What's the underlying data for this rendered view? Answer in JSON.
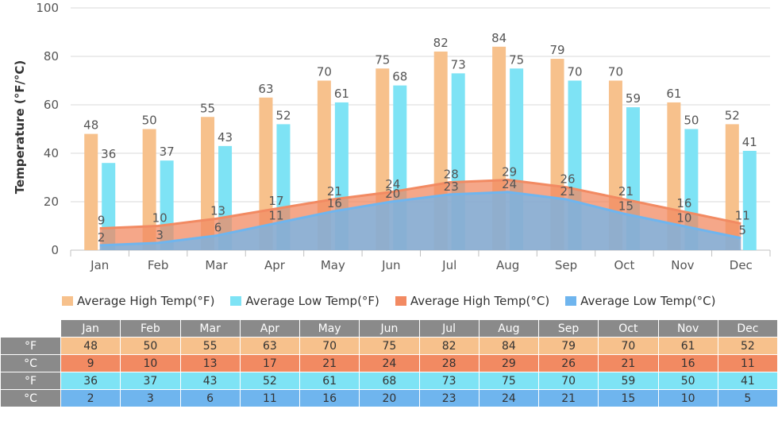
{
  "chart_data": {
    "type": "bar",
    "categories": [
      "Jan",
      "Feb",
      "Mar",
      "Apr",
      "May",
      "Jun",
      "Jul",
      "Aug",
      "Sep",
      "Oct",
      "Nov",
      "Dec"
    ],
    "ylabel": "Temperature (°F/°C)",
    "ylim": [
      0,
      100
    ],
    "yticks": [
      0,
      20,
      40,
      60,
      80,
      100
    ],
    "grid": true,
    "legend_position": "bottom",
    "series": [
      {
        "name": "Average High Temp(°F)",
        "kind": "bar",
        "color": "#f7c18c",
        "values": [
          48,
          50,
          55,
          63,
          70,
          75,
          82,
          84,
          79,
          70,
          61,
          52
        ]
      },
      {
        "name": "Average Low Temp(°F)",
        "kind": "bar",
        "color": "#7ee3f5",
        "values": [
          36,
          37,
          43,
          52,
          61,
          68,
          73,
          75,
          70,
          59,
          50,
          41
        ]
      },
      {
        "name": "Average High Temp(°C)",
        "kind": "area",
        "color": "#f28a62",
        "values": [
          9,
          10,
          13,
          17,
          21,
          24,
          28,
          29,
          26,
          21,
          16,
          11
        ]
      },
      {
        "name": "Average Low Temp(°C)",
        "kind": "area",
        "color": "#6fb5ee",
        "values": [
          2,
          3,
          6,
          11,
          16,
          20,
          23,
          24,
          21,
          15,
          10,
          5
        ]
      }
    ]
  },
  "table": {
    "rows": [
      {
        "label": "°F",
        "series": 0,
        "bg": "#f7c18c"
      },
      {
        "label": "°C",
        "series": 2,
        "bg": "#f28a62"
      },
      {
        "label": "°F",
        "series": 1,
        "bg": "#7ee3f5"
      },
      {
        "label": "°C",
        "series": 3,
        "bg": "#6fb5ee"
      }
    ]
  }
}
